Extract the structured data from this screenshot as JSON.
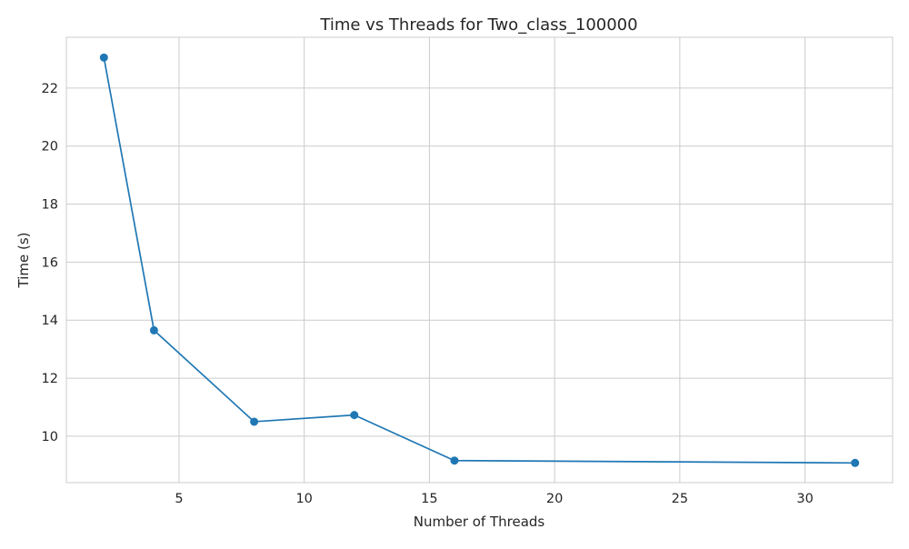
{
  "chart_data": {
    "type": "line",
    "title": "Time vs Threads for Two_class_100000",
    "xlabel": "Number of Threads",
    "ylabel": "Time (s)",
    "xlim": [
      0.5,
      33.5
    ],
    "ylim": [
      8.4,
      23.75
    ],
    "xticks": [
      5,
      10,
      15,
      20,
      25,
      30
    ],
    "yticks": [
      10,
      12,
      14,
      16,
      18,
      20,
      22
    ],
    "grid": true,
    "legend": "none",
    "series": [
      {
        "color": "#1f77b4",
        "marker": "circle",
        "points": [
          {
            "x": 2,
            "y": 23.05
          },
          {
            "x": 4,
            "y": 13.65
          },
          {
            "x": 8,
            "y": 10.5
          },
          {
            "x": 12,
            "y": 10.73
          },
          {
            "x": 16,
            "y": 9.16
          },
          {
            "x": 32,
            "y": 9.08
          }
        ]
      }
    ]
  },
  "colors": {
    "grid": "#cccccc",
    "spine": "#cccccc",
    "text": "#262626"
  }
}
